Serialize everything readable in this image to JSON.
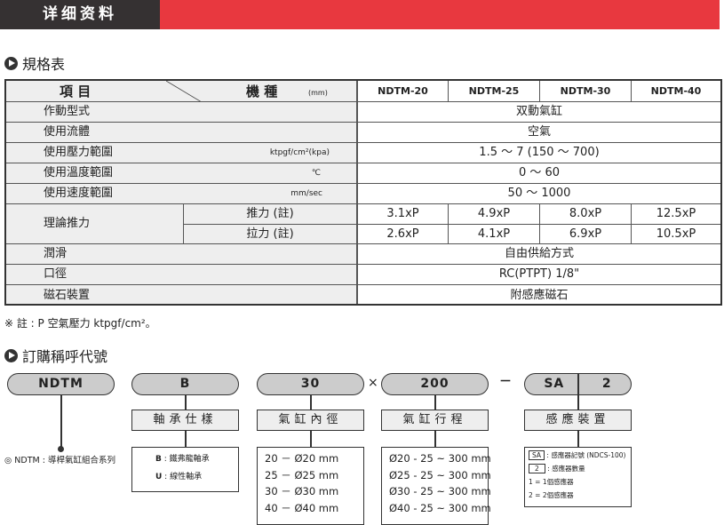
{
  "header": {
    "title": "详细资料",
    "accent": "#e8383f",
    "dark": "#353132"
  },
  "spec": {
    "section_title": "規格表",
    "head_item": "項 目",
    "head_model": "機 種",
    "head_unit": "(mm)",
    "models": [
      "NDTM-20",
      "NDTM-25",
      "NDTM-30",
      "NDTM-40"
    ],
    "rows": [
      {
        "label": "作動型式",
        "unit": "",
        "value": "双動氣缸"
      },
      {
        "label": "使用流體",
        "unit": "",
        "value": "空氣"
      },
      {
        "label": "使用壓力範圍",
        "unit": "ktpgf/cm²(kpa)",
        "value": "1.5 ～ 7 (150 ～ 700)"
      },
      {
        "label": "使用溫度範圍",
        "unit": "℃",
        "value": "0 ～ 60"
      },
      {
        "label": "使用速度範圍",
        "unit": "mm/sec",
        "value": "50 ～ 1000"
      }
    ],
    "force": {
      "label": "理論推力",
      "push": "推力 (註)",
      "pull": "拉力 (註)",
      "push_values": [
        "3.1xP",
        "4.9xP",
        "8.0xP",
        "12.5xP"
      ],
      "pull_values": [
        "2.6xP",
        "4.1xP",
        "6.9xP",
        "10.5xP"
      ]
    },
    "rows2": [
      {
        "label": "潤滑",
        "value": "自由供給方式"
      },
      {
        "label": "口徑",
        "value": "RC(PTPT) 1/8\""
      },
      {
        "label": "磁石裝置",
        "value": "附感應磁石"
      }
    ],
    "note": "※ 註 : P 空氣壓力 ktpgf/cm²。"
  },
  "order": {
    "section_title": "訂購稱呼代號",
    "codes": {
      "series": "NDTM",
      "bearing": "B",
      "bore": "30",
      "times": "×",
      "stroke": "200",
      "dash": "－",
      "sensor": "SA",
      "count": "2"
    },
    "labels": {
      "bearing": "軸承仕樣",
      "bore": "氣缸內徑",
      "stroke": "氣缸行程",
      "sensor": "感應裝置"
    },
    "series_desc": "◎ NDTM : 導桿氣缸組合系列",
    "bearing_opts": [
      {
        "k": "B",
        "v": " : 鐵弗龍軸承"
      },
      {
        "k": "U",
        "v": " : 線性軸承"
      }
    ],
    "bore_opts": [
      "20 － Ø20  mm",
      "25 － Ø25  mm",
      "30 － Ø30  mm",
      "40 － Ø40  mm"
    ],
    "stroke_opts": [
      "Ø20 - 25 ~ 300 mm",
      "Ø25 - 25 ~ 300 mm",
      "Ø30 - 25 ~ 300 mm",
      "Ø40 - 25 ~ 300 mm"
    ],
    "sensor_opts": {
      "sa_box": "SA",
      "sa_text": " : 感應器記號 (NDCS-100)",
      "n_box": "2",
      "n_text": " : 感應器數量",
      "one": "1 = 1個感應器",
      "two": "2 = 2個感應器"
    }
  }
}
